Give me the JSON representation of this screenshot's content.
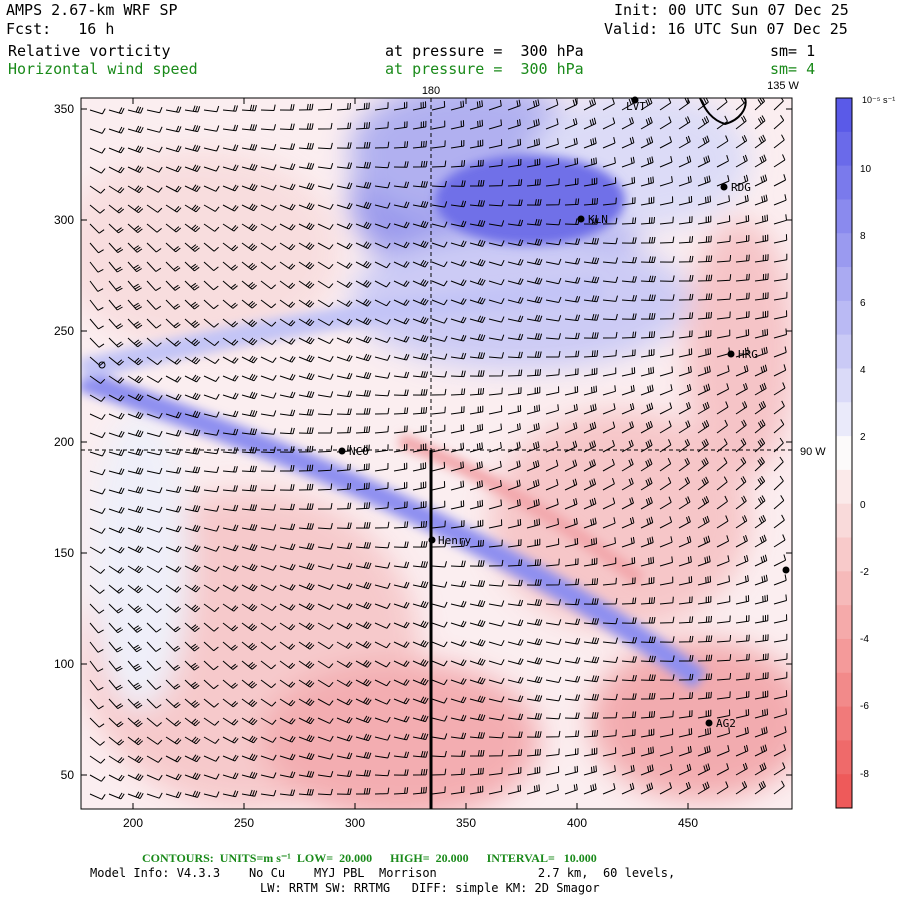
{
  "header": {
    "model": "AMPS 2.67-km WRF SP",
    "forecast": "Fcst:   16 h",
    "init": "Init: 00 UTC Sun 07 Dec 25",
    "valid": "Valid: 16 UTC Sun 07 Dec 25",
    "field1": "Relative vorticity",
    "field1_level": "at pressure =  300 hPa",
    "field1_sm": "sm= 1",
    "field2": "Horizontal wind speed",
    "field2_level": "at pressure =  300 hPa",
    "field2_sm": "sm= 4"
  },
  "map": {
    "lon_top_180": "180",
    "lon_top_135w": "135 W",
    "lon_right_90w": "90 W",
    "x_ticks": [
      "200",
      "250",
      "300",
      "350",
      "400",
      "450"
    ],
    "y_ticks": [
      "50",
      "100",
      "150",
      "200",
      "250",
      "300",
      "350"
    ],
    "stations": [
      {
        "name": "LVT"
      },
      {
        "name": "RDG"
      },
      {
        "name": "KLN"
      },
      {
        "name": "HRG"
      },
      {
        "name": "NCO"
      },
      {
        "name": "Henry"
      },
      {
        "name": "AG2"
      }
    ]
  },
  "colorbar": {
    "unit": "10^-5 s^-1",
    "unit_display": "10⁻⁵ s⁻¹",
    "labels": [
      "10",
      "8",
      "6",
      "4",
      "2",
      "0",
      "-2",
      "-4",
      "-6",
      "-8"
    ],
    "positive_color": "#5a5ae8",
    "negative_color": "#ee5a5a"
  },
  "footer": {
    "contours": "CONTOURS:  UNITS=m s⁻¹  LOW=  20.000      HIGH=  20.000      INTERVAL=   10.000",
    "model_info": "Model Info: V4.3.3    No Cu    MYJ PBL  Morrison              2.7 km,  60 levels,",
    "physics": "LW: RRTM SW: RRTMG   DIFF: simple KM: 2D Smagor"
  }
}
